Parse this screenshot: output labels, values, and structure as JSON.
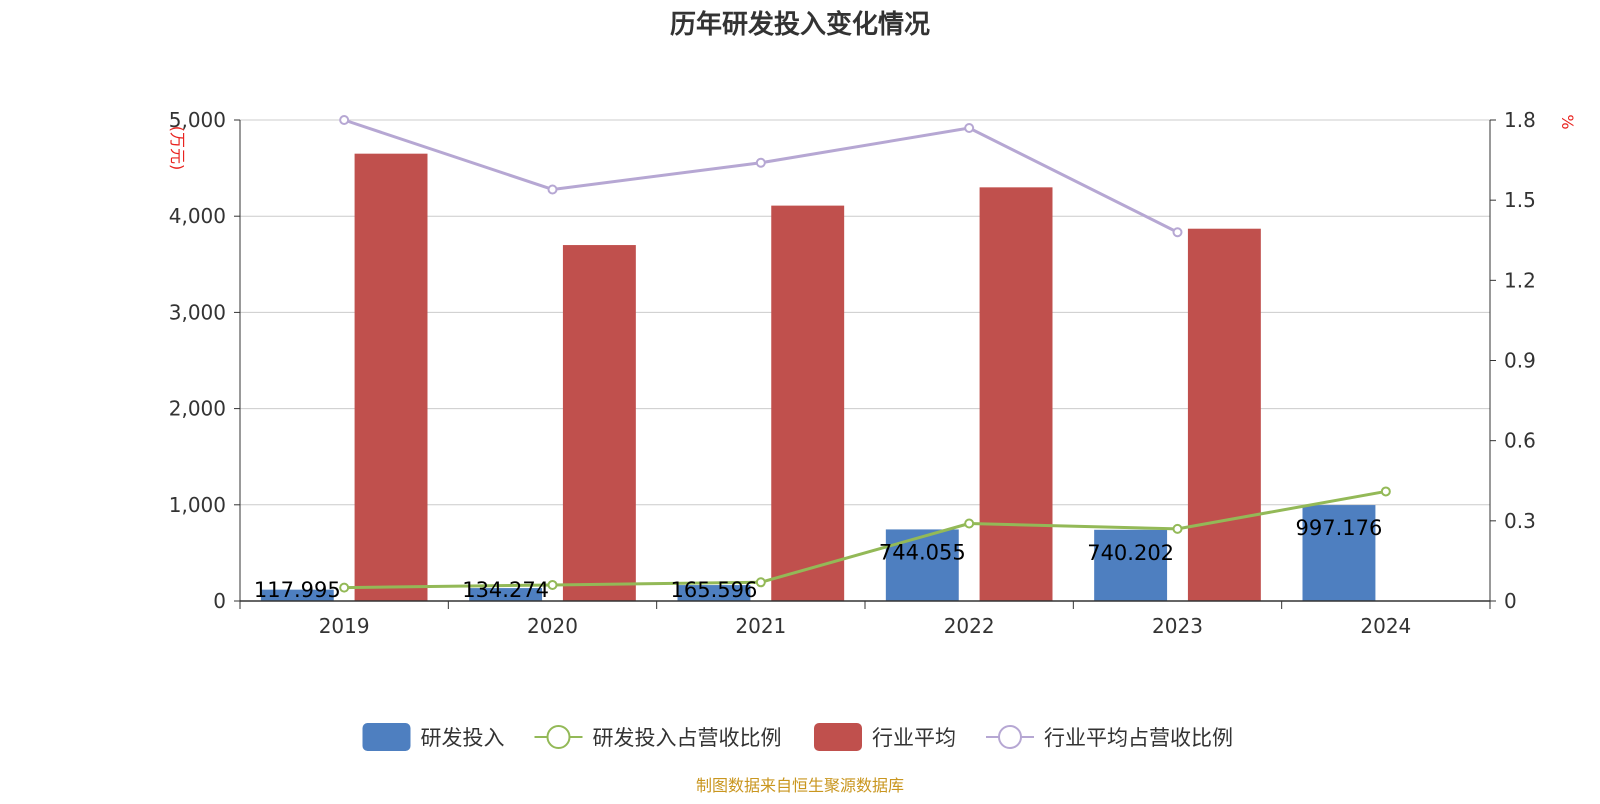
{
  "chart_data": {
    "type": "bar",
    "title": "历年研发投入变化情况",
    "categories": [
      "2019",
      "2020",
      "2021",
      "2022",
      "2023",
      "2024"
    ],
    "y_left": {
      "unit_label": "(万元)",
      "min": 0,
      "max": 5000,
      "ticks": [
        "0",
        "1,000",
        "2,000",
        "3,000",
        "4,000",
        "5,000"
      ]
    },
    "y_right": {
      "unit_label": "%",
      "min": 0,
      "max": 1.8,
      "ticks": [
        "0",
        "0.3",
        "0.6",
        "0.9",
        "1.2",
        "1.5",
        "1.8"
      ]
    },
    "series": [
      {
        "name": "研发投入",
        "kind": "bar",
        "axis": "left",
        "color": "#4e7fc0",
        "values": [
          117.995,
          134.274,
          165.596,
          744.055,
          740.202,
          997.176
        ],
        "labels": [
          "117.995",
          "134.274",
          "165.596",
          "744.055",
          "740.202",
          "997.176"
        ]
      },
      {
        "name": "研发投入占营收比例",
        "kind": "line",
        "axis": "right",
        "color": "#93b957",
        "values": [
          0.05,
          0.06,
          0.07,
          0.29,
          0.27,
          0.41
        ]
      },
      {
        "name": "行业平均",
        "kind": "bar",
        "axis": "left",
        "color": "#c0504d",
        "values": [
          4650,
          3700,
          4110,
          4300,
          3870,
          null
        ]
      },
      {
        "name": "行业平均占营收比例",
        "kind": "line",
        "axis": "right",
        "color": "#b6a7d3",
        "values": [
          1.8,
          1.54,
          1.64,
          1.77,
          1.38,
          null
        ]
      }
    ],
    "grid": true,
    "legend_position": "bottom"
  },
  "footer": {
    "source": "制图数据来自恒生聚源数据库"
  }
}
